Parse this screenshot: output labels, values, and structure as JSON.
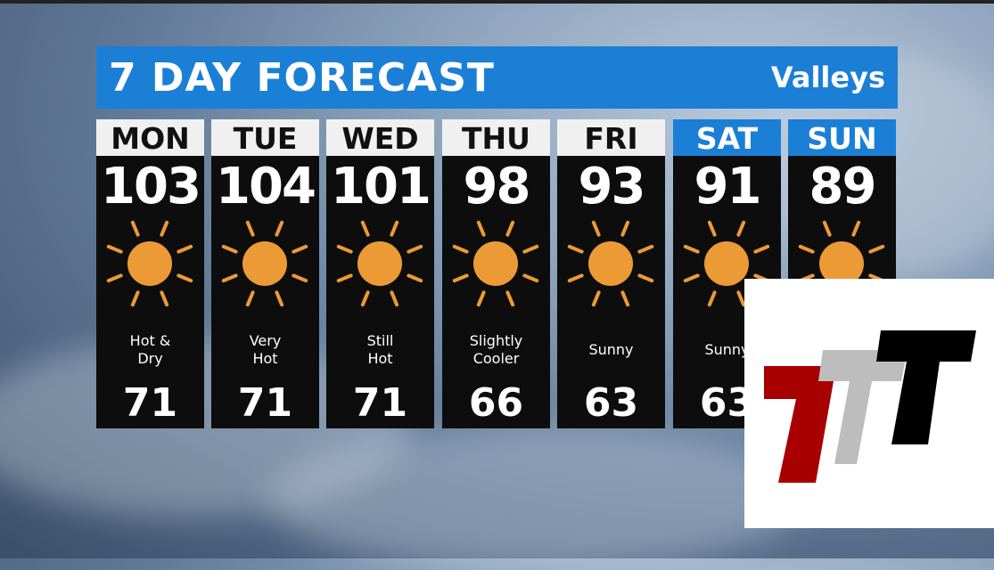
{
  "header": {
    "title": "7 DAY FORECAST",
    "region": "Valleys"
  },
  "colors": {
    "banner": "#1b7fd6",
    "sun": "#ec9a36",
    "panel": "#0d0d0d"
  },
  "days": [
    {
      "name": "MON",
      "high": "103",
      "icon": "sun-icon",
      "condition": "Hot & Dry",
      "low": "71",
      "weekend": false
    },
    {
      "name": "TUE",
      "high": "104",
      "icon": "sun-icon",
      "condition": "Very Hot",
      "low": "71",
      "weekend": false
    },
    {
      "name": "WED",
      "high": "101",
      "icon": "sun-icon",
      "condition": "Still Hot",
      "low": "71",
      "weekend": false
    },
    {
      "name": "THU",
      "high": "98",
      "icon": "sun-icon",
      "condition": "Slightly Cooler",
      "low": "66",
      "weekend": false
    },
    {
      "name": "FRI",
      "high": "93",
      "icon": "sun-icon",
      "condition": "Sunny",
      "low": "63",
      "weekend": false
    },
    {
      "name": "SAT",
      "high": "91",
      "icon": "sun-icon",
      "condition": "Sunny",
      "low": "63",
      "weekend": true
    },
    {
      "name": "SUN",
      "high": "89",
      "icon": "sun-icon",
      "condition": "",
      "low": "",
      "weekend": true
    }
  ],
  "logo": {
    "text": "TTT",
    "colors": [
      "#a80000",
      "#bdbdbd",
      "#000000"
    ]
  }
}
